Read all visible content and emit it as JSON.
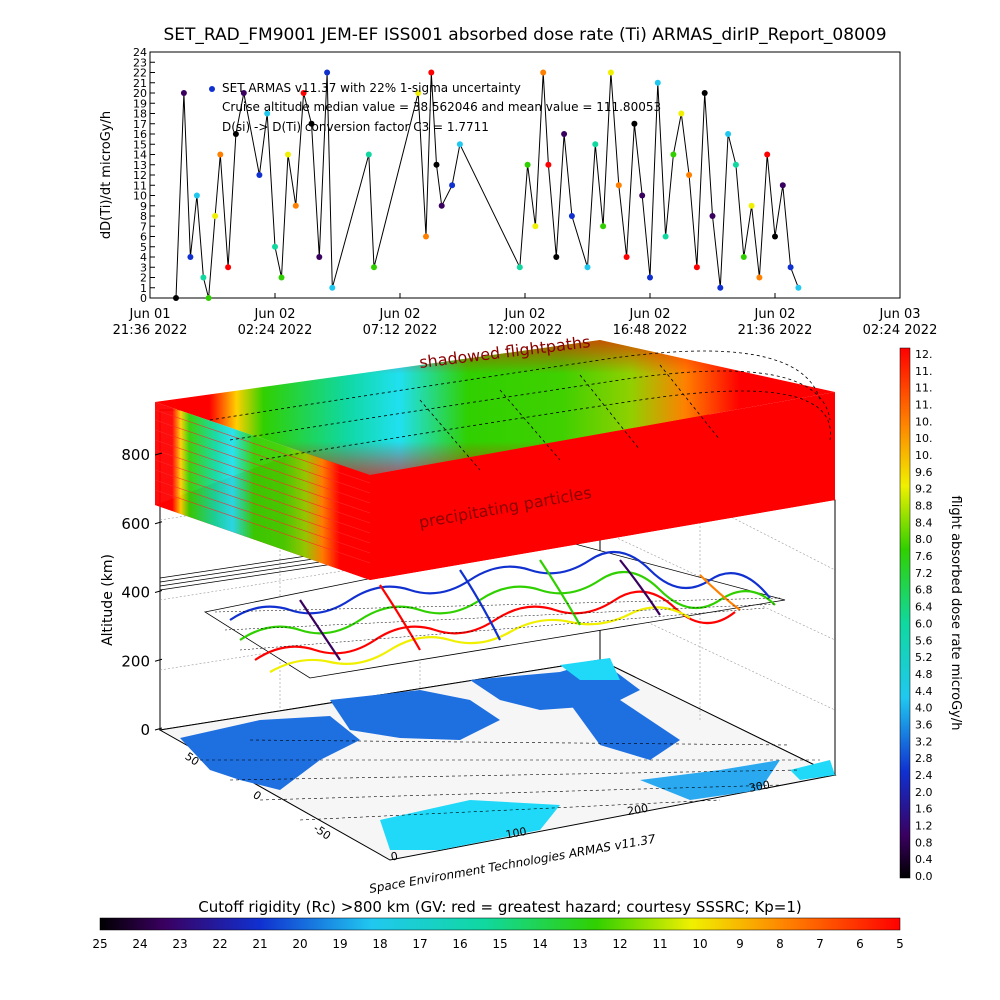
{
  "title": "SET_RAD_FM9001  JEM-EF ISS001 absorbed dose rate (Ti) ARMAS_dirIP_Report_08009",
  "chart_data": [
    {
      "type": "scatter",
      "ylabel": "dD(Ti)/dt microGy/h",
      "ylim": [
        0,
        24
      ],
      "yticks": [
        0,
        1,
        2,
        3,
        4,
        5,
        6,
        7,
        8,
        9,
        10,
        11,
        12,
        13,
        14,
        15,
        16,
        17,
        18,
        19,
        20,
        21,
        22,
        23,
        24
      ],
      "xticks": [
        {
          "day": "Jun 01",
          "time": "21:36 2022"
        },
        {
          "day": "Jun 02",
          "time": "02:24 2022"
        },
        {
          "day": "Jun 02",
          "time": "07:12 2022"
        },
        {
          "day": "Jun 02",
          "time": "12:00 2022"
        },
        {
          "day": "Jun 02",
          "time": "16:48 2022"
        },
        {
          "day": "Jun 02",
          "time": "21:36 2022"
        },
        {
          "day": "Jun 03",
          "time": "02:24 2022"
        }
      ],
      "annotations": [
        "SET ARMAS v11.37 with 22% 1-sigma uncertainty",
        "Cruise altitude median value = 38.562046 and mean value = 111.80053",
        "D(si) -> D(Ti) conversion factor C3 = 1.7711"
      ],
      "x_hours": [
        1.0,
        1.3,
        1.55,
        1.8,
        2.05,
        2.25,
        2.5,
        2.7,
        3.0,
        3.3,
        3.6,
        4.2,
        4.5,
        4.8,
        5.05,
        5.3,
        5.6,
        5.9,
        6.2,
        6.5,
        6.8,
        7.0,
        8.4,
        8.6,
        10.3,
        10.6,
        10.8,
        11.0,
        11.2,
        11.6,
        11.9,
        14.2,
        14.5,
        14.8,
        15.1,
        15.3,
        15.6,
        15.9,
        16.2,
        16.8,
        17.1,
        17.4,
        17.7,
        18.0,
        18.3,
        18.6,
        18.9,
        19.2,
        19.5,
        19.8,
        20.1,
        20.4,
        20.7,
        21.0,
        21.3,
        21.6,
        21.9,
        22.2,
        22.5,
        22.8,
        23.1,
        23.4,
        23.7,
        24.0,
        24.3,
        24.6,
        24.9
      ],
      "y_values": [
        0,
        20,
        4,
        10,
        2,
        0,
        8,
        14,
        3,
        16,
        20,
        12,
        18,
        5,
        2,
        14,
        9,
        20,
        17,
        4,
        22,
        1,
        14,
        3,
        20,
        6,
        22,
        13,
        9,
        11,
        15,
        3,
        13,
        7,
        22,
        13,
        4,
        16,
        8,
        3,
        15,
        7,
        22,
        11,
        4,
        17,
        10,
        2,
        21,
        6,
        14,
        18,
        12,
        3,
        20,
        8,
        1,
        16,
        13,
        4,
        9,
        2,
        14,
        6,
        11,
        3,
        1
      ],
      "colorbar": {
        "label": "flight absorbed dose rate microGy/h",
        "ticks": [
          "12.",
          "11.",
          "11.",
          "11.",
          "10.",
          "10.",
          "10.",
          "9.6",
          "9.2",
          "8.8",
          "8.4",
          "8.0",
          "7.6",
          "7.2",
          "6.8",
          "6.4",
          "6.0",
          "5.6",
          "5.2",
          "4.8",
          "4.4",
          "4.0",
          "3.6",
          "3.2",
          "2.8",
          "2.4",
          "2.0",
          "1.6",
          "1.2",
          "0.8",
          "0.4",
          "0.0"
        ]
      }
    },
    {
      "type": "surface3d",
      "zlabel": "Altitude (km)",
      "zticks": [
        0,
        200,
        400,
        600,
        800
      ],
      "xticks": [
        0,
        100,
        200,
        300
      ],
      "yticks": [
        50,
        0,
        -50
      ],
      "annotations": [
        "shadowed flightpaths",
        "precipitating particles"
      ],
      "credit": "Space Environment Technologies ARMAS v11.37",
      "colorbar": {
        "label": "Cutoff rigidity (Rc) >800 km (GV: red = greatest hazard; courtesy SSSRC; Kp=1)",
        "ticks": [
          "25",
          "24",
          "23",
          "22",
          "21",
          "20",
          "19",
          "18",
          "17",
          "16",
          "15",
          "14",
          "13",
          "12",
          "11",
          "10",
          "9",
          "8",
          "7",
          "6",
          "5"
        ]
      }
    }
  ]
}
